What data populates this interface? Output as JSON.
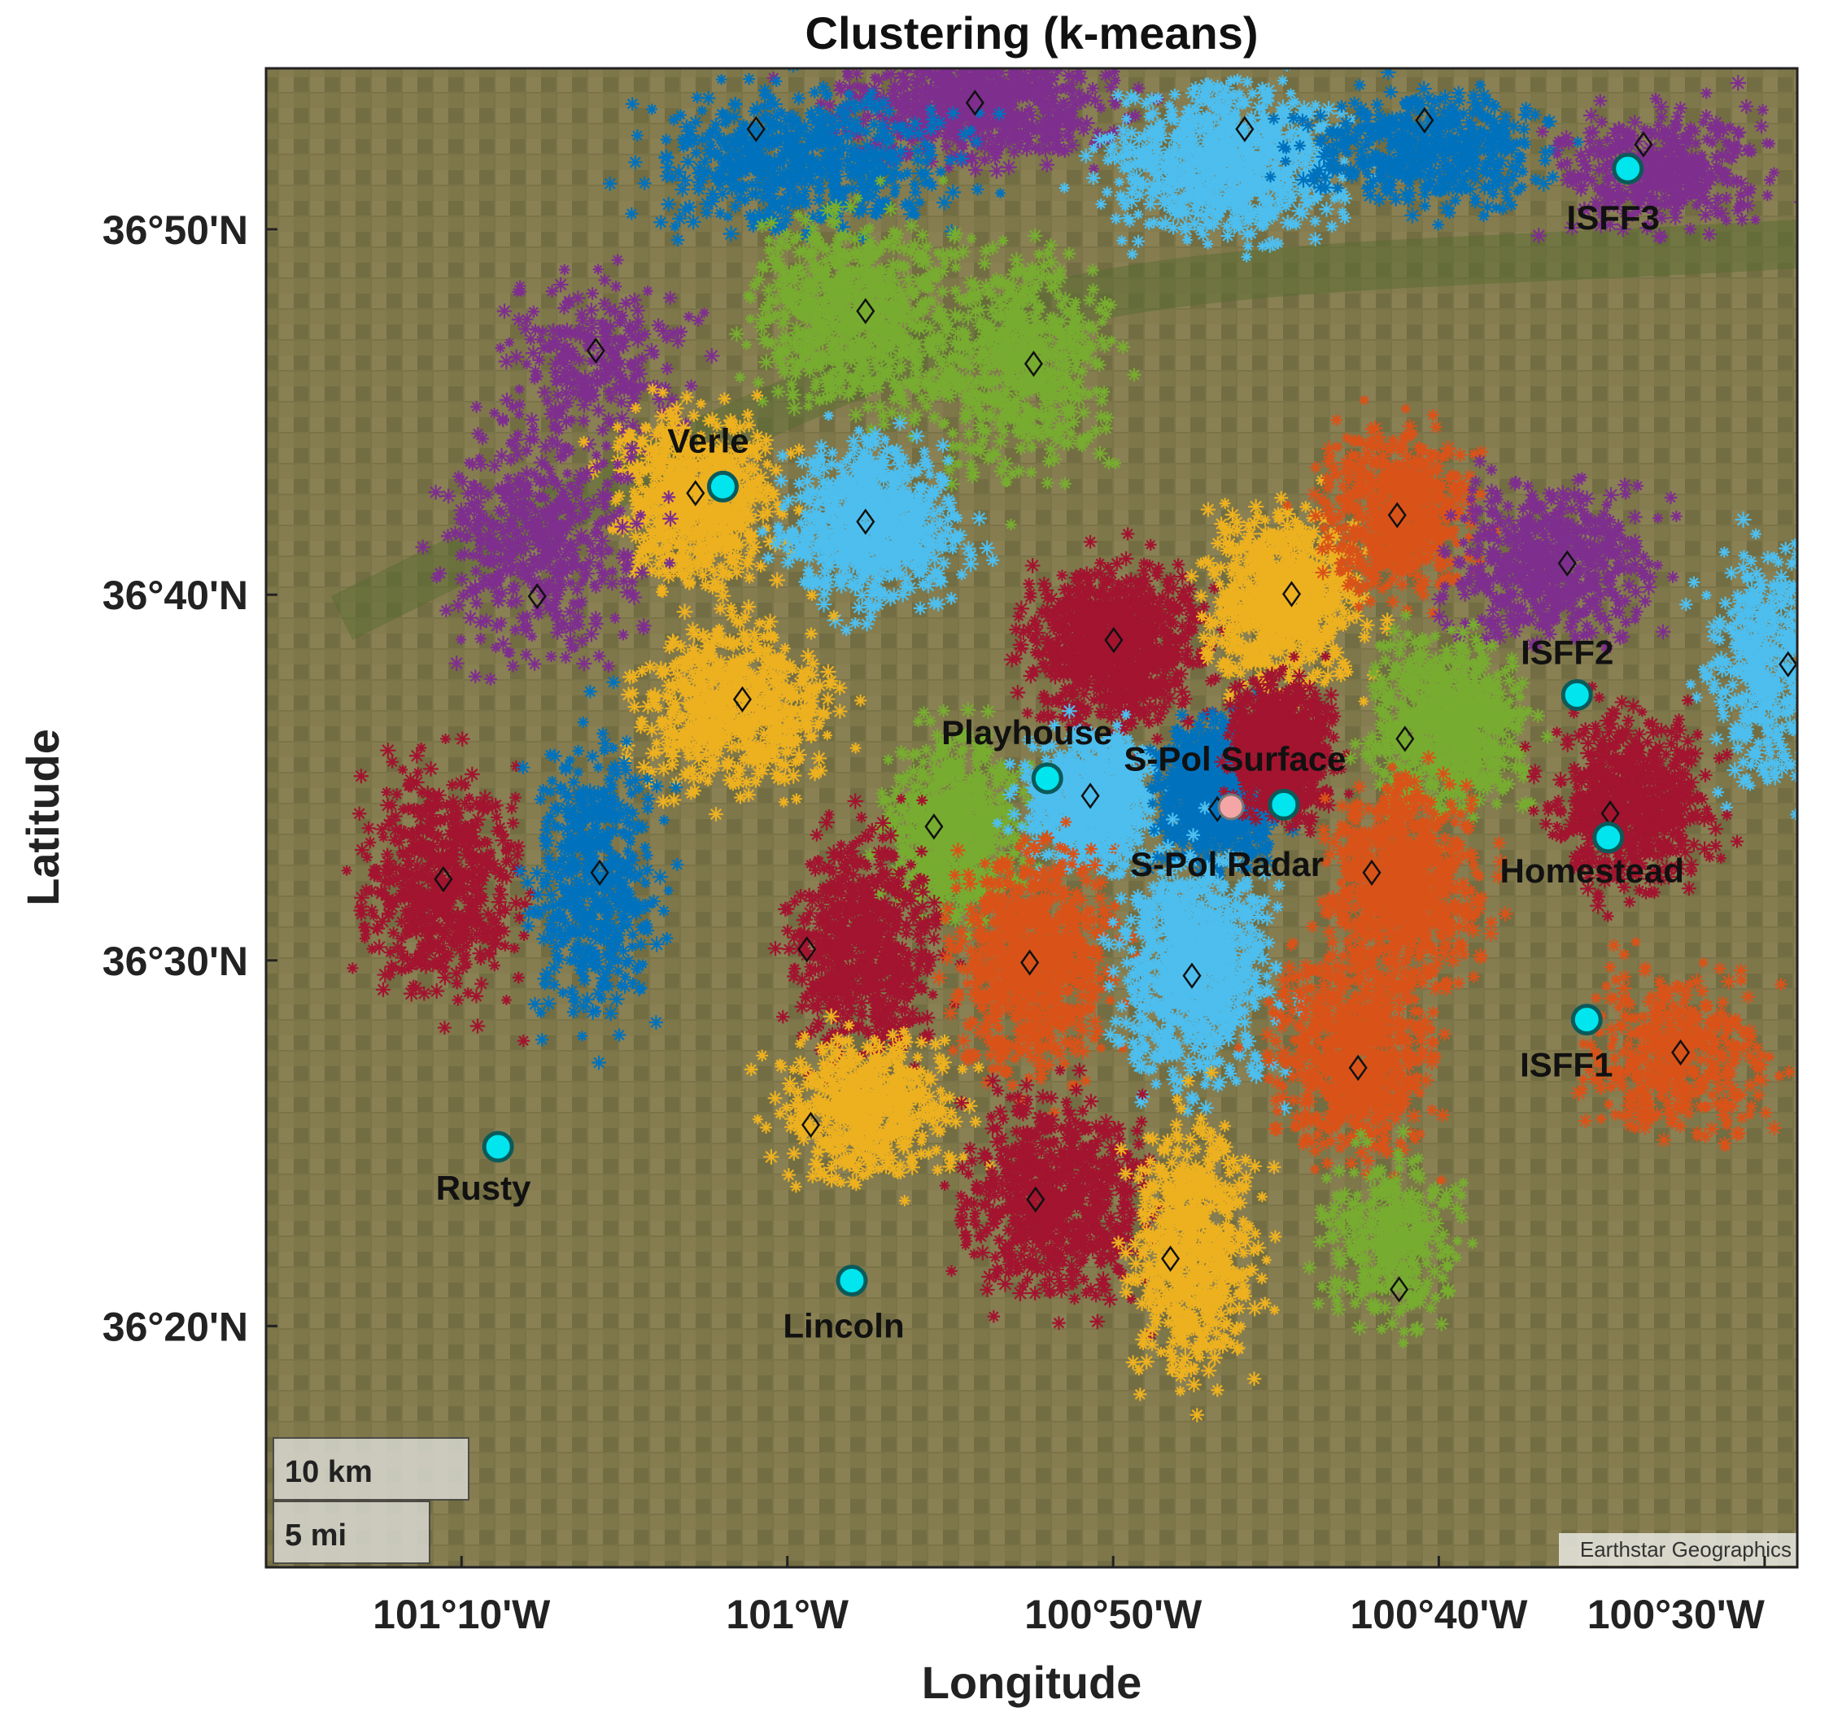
{
  "title": "Clustering (k-means)",
  "xlabel": "Longitude",
  "ylabel": "Latitude",
  "x_ticks": [
    {
      "label": "101°10'W",
      "value": -101.1667
    },
    {
      "label": "101°W",
      "value": -101.0
    },
    {
      "label": "100°50'W",
      "value": -100.8333
    },
    {
      "label": "100°40'W",
      "value": -100.6667
    },
    {
      "label": "100°30'W",
      "value": -100.5
    }
  ],
  "y_ticks": [
    {
      "label": "36°50'N",
      "value": 36.8333
    },
    {
      "label": "36°40'N",
      "value": 36.6667
    },
    {
      "label": "36°30'N",
      "value": 36.5
    },
    {
      "label": "36°20'N",
      "value": 36.3333
    }
  ],
  "basemap_attribution": "Earthstar Geographics",
  "scale_bar": {
    "km_label": "10 km",
    "mi_label": "5 mi"
  },
  "colors": {
    "cluster_palette": [
      "#0072BD",
      "#D95319",
      "#EDB120",
      "#7E2F8E",
      "#77AC30",
      "#4DBEEE",
      "#A2142F"
    ],
    "site_marker": "#00E5EE",
    "site_marker_edge": "#0b5a5a",
    "radar_marker": "#f4a6a6",
    "centroid_edge": "#111111",
    "frame": "#222222"
  },
  "chart_data": {
    "type": "scatter",
    "title": "Clustering (k-means)",
    "xlabel": "Longitude",
    "ylabel": "Latitude",
    "xlim": [
      -101.2667,
      -100.4833
    ],
    "ylim": [
      36.2233,
      36.9067
    ],
    "grid": false,
    "legend": "none",
    "sites": [
      {
        "name": "Verle",
        "lon": -101.033,
        "lat": 36.716
      },
      {
        "name": "Playhouse",
        "lon": -100.867,
        "lat": 36.583
      },
      {
        "name": "S-Pol Surface",
        "lon": -100.746,
        "lat": 36.571
      },
      {
        "name": "ISFF3",
        "lon": -100.57,
        "lat": 36.861
      },
      {
        "name": "ISFF2",
        "lon": -100.596,
        "lat": 36.621
      },
      {
        "name": "Homestead",
        "lon": -100.58,
        "lat": 36.556
      },
      {
        "name": "ISFF1",
        "lon": -100.591,
        "lat": 36.473
      },
      {
        "name": "Rusty",
        "lon": -101.148,
        "lat": 36.415
      },
      {
        "name": "Lincoln",
        "lon": -100.967,
        "lat": 36.354
      }
    ],
    "radar": {
      "name": "S-Pol Radar",
      "lon": -100.773,
      "lat": 36.57
    },
    "clusters": [
      {
        "color": "#7E2F8E",
        "lon": -100.902,
        "lat": 36.89,
        "sx": 0.055,
        "sy": 0.02,
        "n": 700
      },
      {
        "color": "#0072BD",
        "lon": -100.99,
        "lat": 36.865,
        "sx": 0.06,
        "sy": 0.025,
        "n": 600
      },
      {
        "color": "#4DBEEE",
        "lon": -100.776,
        "lat": 36.865,
        "sx": 0.045,
        "sy": 0.028,
        "n": 800
      },
      {
        "color": "#0072BD",
        "lon": -100.672,
        "lat": 36.87,
        "sx": 0.05,
        "sy": 0.022,
        "n": 500
      },
      {
        "color": "#7E2F8E",
        "lon": -100.553,
        "lat": 36.862,
        "sx": 0.04,
        "sy": 0.022,
        "n": 400
      },
      {
        "color": "#7E2F8E",
        "lon": -101.102,
        "lat": 36.775,
        "sx": 0.04,
        "sy": 0.03,
        "n": 250
      },
      {
        "color": "#77AC30",
        "lon": -100.965,
        "lat": 36.795,
        "sx": 0.04,
        "sy": 0.035,
        "n": 700
      },
      {
        "color": "#77AC30",
        "lon": -100.882,
        "lat": 36.775,
        "sx": 0.035,
        "sy": 0.04,
        "n": 600
      },
      {
        "color": "#EDB120",
        "lon": -101.046,
        "lat": 36.711,
        "sx": 0.032,
        "sy": 0.03,
        "n": 700
      },
      {
        "color": "#4DBEEE",
        "lon": -100.956,
        "lat": 36.699,
        "sx": 0.034,
        "sy": 0.028,
        "n": 800
      },
      {
        "color": "#7E2F8E",
        "lon": -101.125,
        "lat": 36.69,
        "sx": 0.04,
        "sy": 0.04,
        "n": 450
      },
      {
        "color": "#EDB120",
        "lon": -101.026,
        "lat": 36.617,
        "sx": 0.04,
        "sy": 0.03,
        "n": 650
      },
      {
        "color": "#A2142F",
        "lon": -100.83,
        "lat": 36.643,
        "sx": 0.035,
        "sy": 0.028,
        "n": 900
      },
      {
        "color": "#EDB120",
        "lon": -100.745,
        "lat": 36.665,
        "sx": 0.03,
        "sy": 0.03,
        "n": 800
      },
      {
        "color": "#D95319",
        "lon": -100.687,
        "lat": 36.704,
        "sx": 0.03,
        "sy": 0.03,
        "n": 550
      },
      {
        "color": "#7E2F8E",
        "lon": -100.609,
        "lat": 36.681,
        "sx": 0.04,
        "sy": 0.028,
        "n": 550
      },
      {
        "color": "#4DBEEE",
        "lon": -100.497,
        "lat": 36.633,
        "sx": 0.025,
        "sy": 0.04,
        "n": 450
      },
      {
        "color": "#A2142F",
        "lon": -101.177,
        "lat": 36.536,
        "sx": 0.03,
        "sy": 0.04,
        "n": 600
      },
      {
        "color": "#0072BD",
        "lon": -101.098,
        "lat": 36.537,
        "sx": 0.025,
        "sy": 0.05,
        "n": 500
      },
      {
        "color": "#77AC30",
        "lon": -100.914,
        "lat": 36.562,
        "sx": 0.026,
        "sy": 0.032,
        "n": 650
      },
      {
        "color": "#4DBEEE",
        "lon": -100.845,
        "lat": 36.574,
        "sx": 0.026,
        "sy": 0.025,
        "n": 700
      },
      {
        "color": "#0072BD",
        "lon": -100.781,
        "lat": 36.578,
        "sx": 0.022,
        "sy": 0.025,
        "n": 900
      },
      {
        "color": "#A2142F",
        "lon": -100.747,
        "lat": 36.597,
        "sx": 0.02,
        "sy": 0.024,
        "n": 800
      },
      {
        "color": "#77AC30",
        "lon": -100.662,
        "lat": 36.608,
        "sx": 0.03,
        "sy": 0.03,
        "n": 750
      },
      {
        "color": "#A2142F",
        "lon": -100.568,
        "lat": 36.572,
        "sx": 0.03,
        "sy": 0.03,
        "n": 700
      },
      {
        "color": "#D95319",
        "lon": -100.684,
        "lat": 36.535,
        "sx": 0.03,
        "sy": 0.035,
        "n": 750
      },
      {
        "color": "#A2142F",
        "lon": -100.96,
        "lat": 36.507,
        "sx": 0.03,
        "sy": 0.04,
        "n": 650
      },
      {
        "color": "#D95319",
        "lon": -100.872,
        "lat": 36.5,
        "sx": 0.032,
        "sy": 0.038,
        "n": 800
      },
      {
        "color": "#4DBEEE",
        "lon": -100.79,
        "lat": 36.496,
        "sx": 0.03,
        "sy": 0.04,
        "n": 850
      },
      {
        "color": "#D95319",
        "lon": -100.708,
        "lat": 36.456,
        "sx": 0.032,
        "sy": 0.036,
        "n": 700
      },
      {
        "color": "#D95319",
        "lon": -100.545,
        "lat": 36.457,
        "sx": 0.035,
        "sy": 0.03,
        "n": 400
      },
      {
        "color": "#EDB120",
        "lon": -100.958,
        "lat": 36.432,
        "sx": 0.035,
        "sy": 0.025,
        "n": 550
      },
      {
        "color": "#A2142F",
        "lon": -100.863,
        "lat": 36.393,
        "sx": 0.035,
        "sy": 0.035,
        "n": 700
      },
      {
        "color": "#EDB120",
        "lon": -100.792,
        "lat": 36.368,
        "sx": 0.025,
        "sy": 0.045,
        "n": 650
      },
      {
        "color": "#77AC30",
        "lon": -100.691,
        "lat": 36.373,
        "sx": 0.025,
        "sy": 0.03,
        "n": 350
      }
    ],
    "centroids": [
      [
        -101.016,
        36.879
      ],
      [
        -100.904,
        36.891
      ],
      [
        -100.766,
        36.879
      ],
      [
        -100.674,
        36.883
      ],
      [
        -100.562,
        36.872
      ],
      [
        -101.098,
        36.778
      ],
      [
        -100.96,
        36.796
      ],
      [
        -100.874,
        36.772
      ],
      [
        -101.047,
        36.713
      ],
      [
        -100.96,
        36.7
      ],
      [
        -101.128,
        36.666
      ],
      [
        -101.023,
        36.619
      ],
      [
        -100.833,
        36.646
      ],
      [
        -100.742,
        36.667
      ],
      [
        -100.688,
        36.703
      ],
      [
        -100.601,
        36.681
      ],
      [
        -100.488,
        36.635
      ],
      [
        -101.176,
        36.537
      ],
      [
        -101.096,
        36.54
      ],
      [
        -100.925,
        36.561
      ],
      [
        -100.845,
        36.575
      ],
      [
        -100.78,
        36.569
      ],
      [
        -100.684,
        36.601
      ],
      [
        -100.579,
        36.567
      ],
      [
        -100.701,
        36.54
      ],
      [
        -100.99,
        36.505
      ],
      [
        -100.876,
        36.499
      ],
      [
        -100.793,
        36.493
      ],
      [
        -100.708,
        36.451
      ],
      [
        -100.543,
        36.458
      ],
      [
        -100.988,
        36.425
      ],
      [
        -100.873,
        36.391
      ],
      [
        -100.804,
        36.364
      ],
      [
        -100.687,
        36.35
      ]
    ]
  }
}
